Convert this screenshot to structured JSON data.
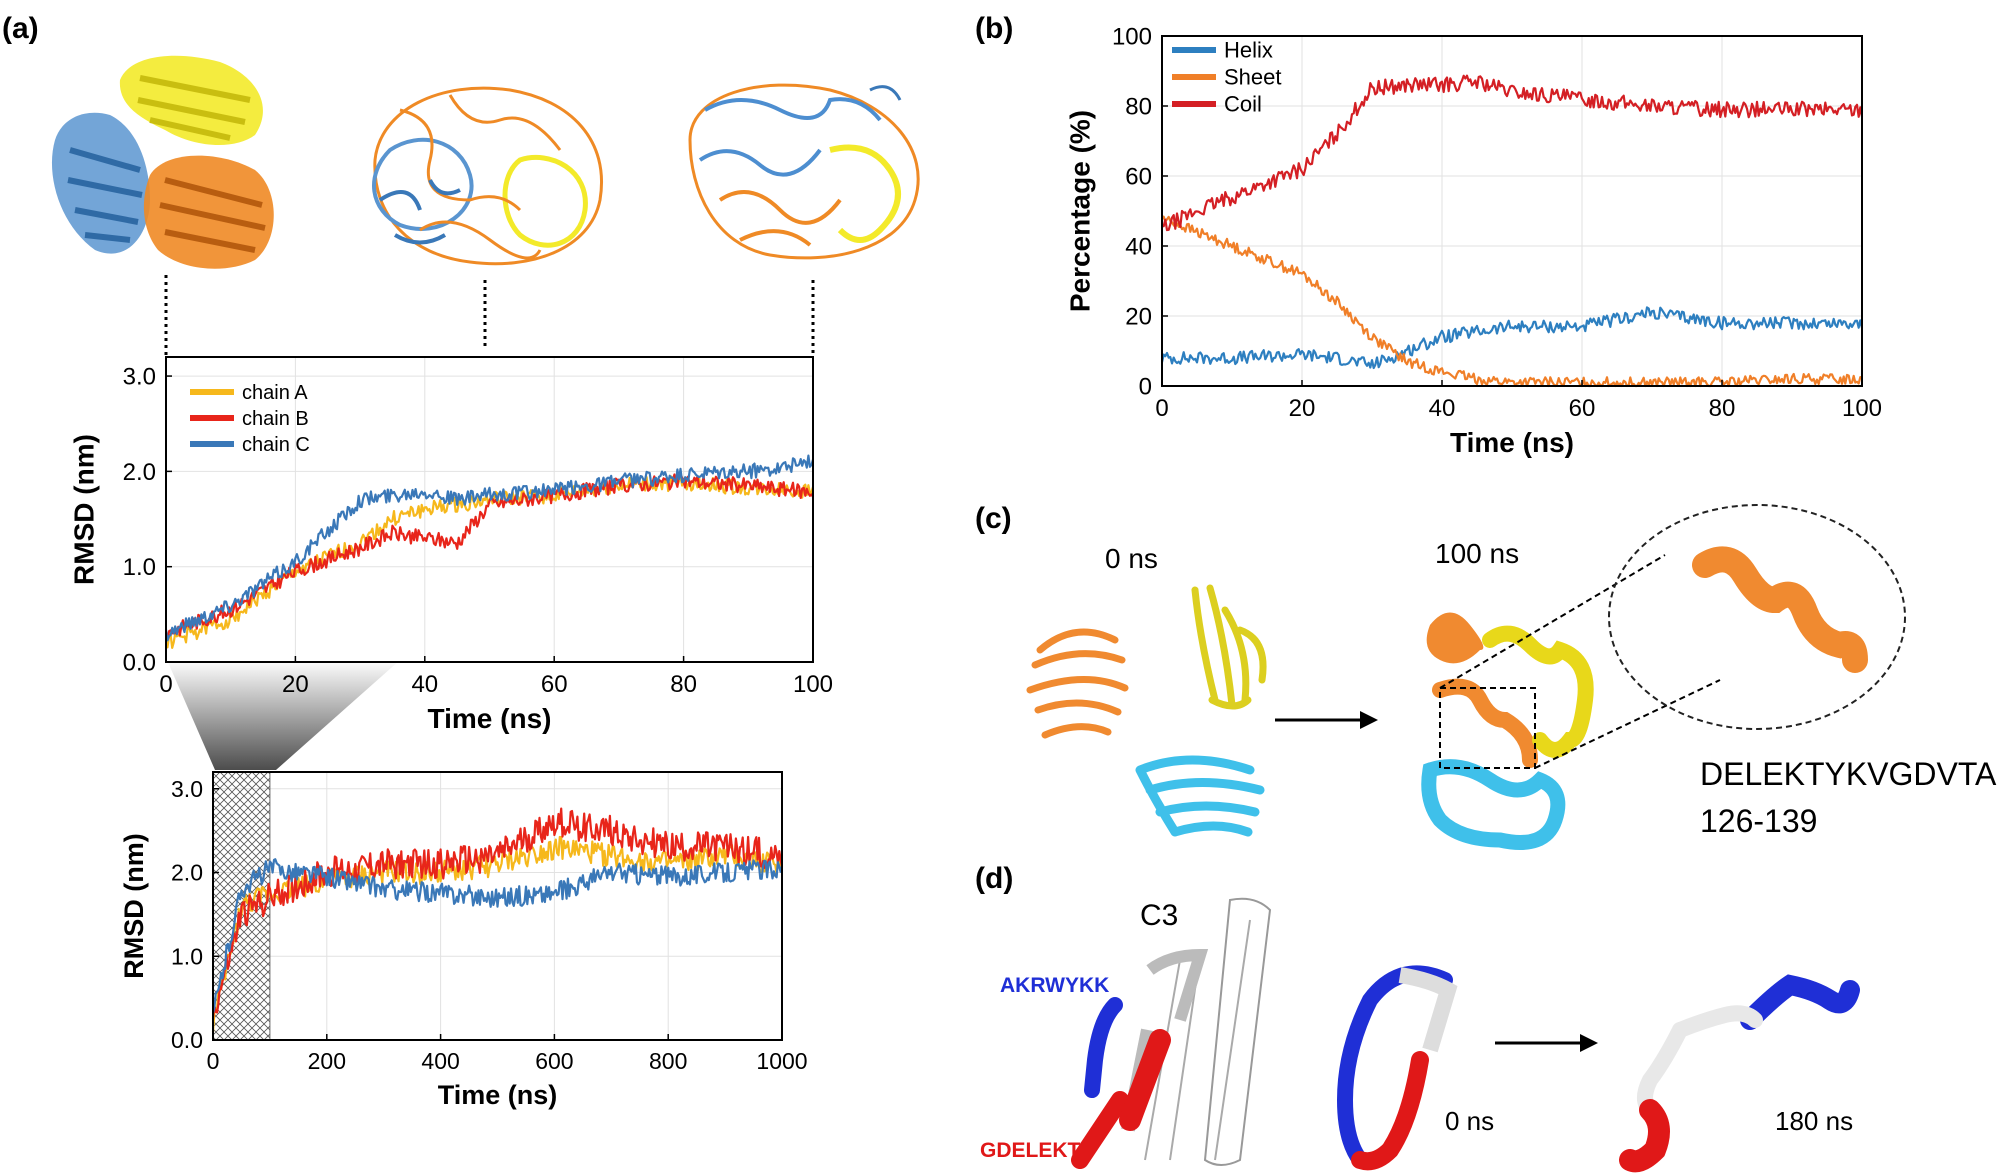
{
  "panels": {
    "a": "(a)",
    "b": "(b)",
    "c": "(c)",
    "d": "(d)"
  },
  "colors": {
    "chainA": "#f6b81c",
    "chainB": "#e8251a",
    "chainC": "#3a78b8",
    "helix": "#2d7fc0",
    "sheet": "#f07f28",
    "coil": "#d41f24",
    "orangeStruct": "#f08a30",
    "yellowStruct": "#e8d81a",
    "blueStruct": "#4d8ed0",
    "cyanStruct": "#3fc0ea",
    "redSeg": "#e01818",
    "blueSeg": "#1f2fd6"
  },
  "chart_data": [
    {
      "id": "a_top",
      "type": "line",
      "title": "",
      "xlabel": "Time (ns)",
      "ylabel": "RMSD (nm)",
      "xlim": [
        0,
        100
      ],
      "ylim": [
        0,
        3.2
      ],
      "xticks": [
        0,
        20,
        40,
        60,
        80,
        100
      ],
      "yticks": [
        0.0,
        1.0,
        2.0,
        3.0
      ],
      "xtick_labels": [
        "0",
        "20",
        "40",
        "60",
        "80",
        "100"
      ],
      "ytick_labels": [
        "0.0",
        "1.0",
        "2.0",
        "3.0"
      ],
      "grid": true,
      "legend": "top-left",
      "series": [
        {
          "name": "chain A",
          "x": [
            0,
            10,
            20,
            30,
            35,
            40,
            45,
            50,
            60,
            70,
            80,
            90,
            100
          ],
          "values": [
            0.2,
            0.45,
            0.95,
            1.25,
            1.5,
            1.6,
            1.65,
            1.7,
            1.75,
            1.85,
            1.88,
            1.82,
            1.8
          ]
        },
        {
          "name": "chain B",
          "x": [
            0,
            10,
            20,
            30,
            35,
            40,
            45,
            50,
            60,
            70,
            80,
            90,
            100
          ],
          "values": [
            0.3,
            0.55,
            0.95,
            1.2,
            1.35,
            1.3,
            1.25,
            1.65,
            1.75,
            1.85,
            1.9,
            1.85,
            1.78
          ]
        },
        {
          "name": "chain C",
          "x": [
            0,
            10,
            20,
            30,
            35,
            40,
            45,
            50,
            60,
            70,
            80,
            90,
            100
          ],
          "values": [
            0.3,
            0.6,
            1.05,
            1.7,
            1.75,
            1.8,
            1.7,
            1.75,
            1.8,
            1.9,
            1.95,
            2.0,
            2.1
          ]
        }
      ]
    },
    {
      "id": "a_bottom",
      "type": "line",
      "title": "",
      "xlabel": "Time (ns)",
      "ylabel": "RMSD (nm)",
      "xlim": [
        0,
        1000
      ],
      "ylim": [
        0,
        3.2
      ],
      "xticks": [
        0,
        200,
        400,
        600,
        800,
        1000
      ],
      "yticks": [
        0.0,
        1.0,
        2.0,
        3.0
      ],
      "xtick_labels": [
        "0",
        "200",
        "400",
        "600",
        "800",
        "1000"
      ],
      "ytick_labels": [
        "0.0",
        "1.0",
        "2.0",
        "3.0"
      ],
      "grid": true,
      "shaded_x_range": [
        0,
        100
      ],
      "series": [
        {
          "name": "chain A",
          "x": [
            0,
            50,
            100,
            200,
            300,
            400,
            500,
            600,
            700,
            800,
            900,
            1000
          ],
          "values": [
            0.2,
            1.6,
            1.75,
            1.9,
            2.0,
            2.0,
            2.1,
            2.3,
            2.2,
            2.1,
            2.2,
            2.1
          ]
        },
        {
          "name": "chain B",
          "x": [
            0,
            50,
            100,
            200,
            300,
            400,
            500,
            600,
            700,
            800,
            900,
            1000
          ],
          "values": [
            0.3,
            1.5,
            1.7,
            2.0,
            2.1,
            2.1,
            2.2,
            2.6,
            2.5,
            2.3,
            2.3,
            2.2
          ]
        },
        {
          "name": "chain C",
          "x": [
            0,
            50,
            100,
            200,
            300,
            400,
            500,
            600,
            700,
            800,
            900,
            1000
          ],
          "values": [
            0.3,
            1.8,
            2.05,
            1.95,
            1.8,
            1.75,
            1.7,
            1.75,
            2.0,
            1.95,
            2.0,
            2.05
          ]
        }
      ]
    },
    {
      "id": "b",
      "type": "line",
      "title": "",
      "xlabel": "Time (ns)",
      "ylabel": "Percentage (%)",
      "xlim": [
        0,
        100
      ],
      "ylim": [
        0,
        100
      ],
      "xticks": [
        0,
        20,
        40,
        60,
        80,
        100
      ],
      "yticks": [
        0,
        20,
        40,
        60,
        80,
        100
      ],
      "xtick_labels": [
        "0",
        "20",
        "40",
        "60",
        "80",
        "100"
      ],
      "ytick_labels": [
        "0",
        "20",
        "40",
        "60",
        "80",
        "100"
      ],
      "grid": true,
      "legend": "top-left",
      "series": [
        {
          "name": "Helix",
          "x": [
            0,
            10,
            20,
            25,
            30,
            35,
            40,
            50,
            60,
            70,
            80,
            90,
            100
          ],
          "values": [
            8,
            8,
            9,
            8,
            6,
            10,
            14,
            17,
            17,
            21,
            18,
            18,
            18
          ]
        },
        {
          "name": "Sheet",
          "x": [
            0,
            5,
            10,
            20,
            25,
            30,
            35,
            40,
            45,
            50,
            60,
            70,
            80,
            90,
            100
          ],
          "values": [
            48,
            44,
            40,
            32,
            24,
            14,
            7,
            4,
            2,
            1,
            1,
            1,
            1,
            2,
            2
          ]
        },
        {
          "name": "Coil",
          "x": [
            0,
            5,
            10,
            20,
            25,
            30,
            35,
            40,
            45,
            50,
            60,
            70,
            80,
            90,
            100
          ],
          "values": [
            45,
            50,
            54,
            62,
            72,
            85,
            86,
            86,
            87,
            84,
            82,
            80,
            79,
            79,
            79
          ]
        }
      ]
    }
  ],
  "panel_c": {
    "time_start": "0 ns",
    "time_end": "100 ns",
    "sequence": "DELEKTYKVGDVTA",
    "range": "126-139"
  },
  "panel_d": {
    "title": "C3",
    "label_blue": "AKRWYKK",
    "label_red": "GDELEKT",
    "time_start": "0 ns",
    "time_end": "180 ns"
  }
}
